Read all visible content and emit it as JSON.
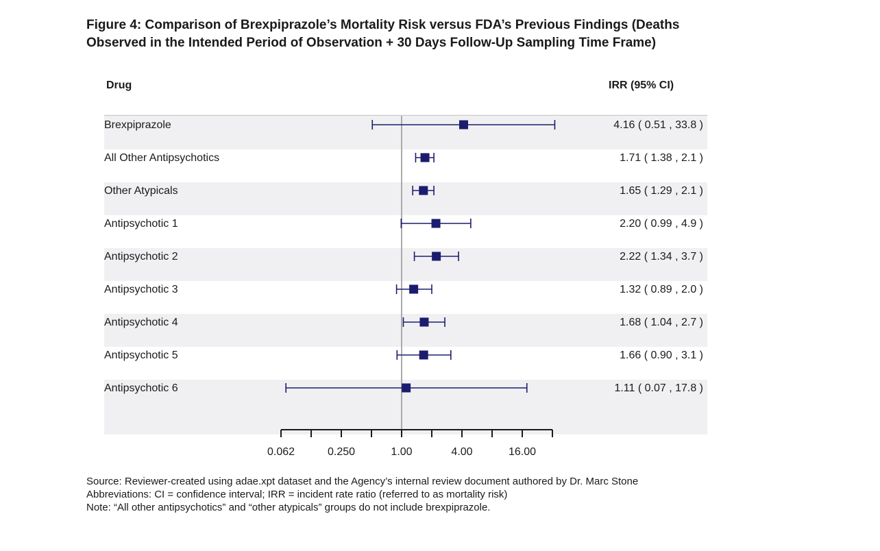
{
  "title": {
    "line1": "Figure 4: Comparison of Brexpiprazole’s Mortality Risk versus FDA’s Previous Findings (Deaths",
    "line2": "Observed in the Intended Period of Observation + 30 Days Follow-Up Sampling Time Frame)"
  },
  "headers": {
    "drug": "Drug",
    "irr": "IRR (95% CI)"
  },
  "chart_data": {
    "type": "forest",
    "scale": "log2",
    "reference_line": 1.0,
    "xlim": [
      0.0625,
      32
    ],
    "x_ticks": [
      0.0625,
      0.125,
      0.25,
      0.5,
      1,
      2,
      4,
      8,
      16,
      32
    ],
    "x_tick_labels": [
      "0.062",
      "",
      "0.250",
      "",
      "1.00",
      "",
      "4.00",
      "",
      "16.00",
      ""
    ],
    "rows": [
      {
        "drug": "Brexpiprazole",
        "irr": 4.16,
        "lo": 0.51,
        "hi": 33.8,
        "label": "4.16  ( 0.51 , 33.8 )"
      },
      {
        "drug": "All Other Antipsychotics",
        "irr": 1.71,
        "lo": 1.38,
        "hi": 2.1,
        "label": "1.71  ( 1.38 ,  2.1 )"
      },
      {
        "drug": "Other Atypicals",
        "irr": 1.65,
        "lo": 1.29,
        "hi": 2.1,
        "label": "1.65  ( 1.29 ,  2.1 )"
      },
      {
        "drug": "Antipsychotic 1",
        "irr": 2.2,
        "lo": 0.99,
        "hi": 4.9,
        "label": "2.20  ( 0.99 ,  4.9 )"
      },
      {
        "drug": "Antipsychotic 2",
        "irr": 2.22,
        "lo": 1.34,
        "hi": 3.7,
        "label": "2.22  ( 1.34 ,  3.7 )"
      },
      {
        "drug": "Antipsychotic 3",
        "irr": 1.32,
        "lo": 0.89,
        "hi": 2.0,
        "label": "1.32  ( 0.89 ,  2.0 )"
      },
      {
        "drug": "Antipsychotic 4",
        "irr": 1.68,
        "lo": 1.04,
        "hi": 2.7,
        "label": "1.68  ( 1.04 ,  2.7 )"
      },
      {
        "drug": "Antipsychotic 5",
        "irr": 1.66,
        "lo": 0.9,
        "hi": 3.1,
        "label": "1.66  ( 0.90 ,  3.1 )"
      },
      {
        "drug": "Antipsychotic 6",
        "irr": 1.11,
        "lo": 0.07,
        "hi": 17.8,
        "label": "1.11  ( 0.07 , 17.8 )"
      }
    ],
    "colors": {
      "marker": "#1c1c6e",
      "reference": "#aaaaaa",
      "band": "#f0f0f3"
    }
  },
  "notes": {
    "source": "Source: Reviewer-created using adae.xpt dataset and the Agency’s internal review document authored by Dr. Marc Stone",
    "abbreviations": "Abbreviations: CI = confidence interval; IRR = incident rate ratio (referred to as mortality risk)",
    "note": "Note: “All other antipsychotics” and “other atypicals” groups do not include brexpiprazole."
  }
}
